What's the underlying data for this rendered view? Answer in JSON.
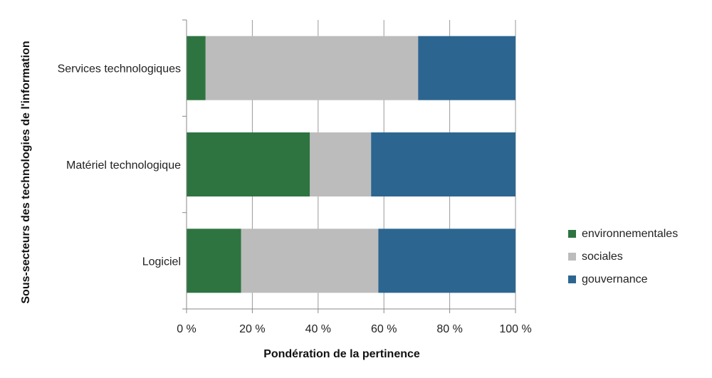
{
  "chart_data": {
    "type": "bar",
    "orientation": "horizontal",
    "stacked": "percent",
    "categories": [
      "Services technologiques",
      "Matériel technologique",
      "Logiciel"
    ],
    "series": [
      {
        "name": "environnementales",
        "color": "#2e7440",
        "values": [
          5.8,
          37.5,
          16.6
        ]
      },
      {
        "name": "sociales",
        "color": "#bcbcbc",
        "values": [
          64.6,
          18.6,
          41.7
        ]
      },
      {
        "name": "gouvernance",
        "color": "#2c6690",
        "values": [
          29.6,
          43.9,
          41.7
        ]
      }
    ],
    "xlabel": "Pondération de la pertinence",
    "ylabel": "Sous-secteurs des technologies de l'information",
    "xlim": [
      0,
      100
    ],
    "xticks": [
      "0 %",
      "20 %",
      "40 %",
      "60 %",
      "80 %",
      "100 %"
    ],
    "grid": "vertical",
    "legend_position": "right"
  }
}
